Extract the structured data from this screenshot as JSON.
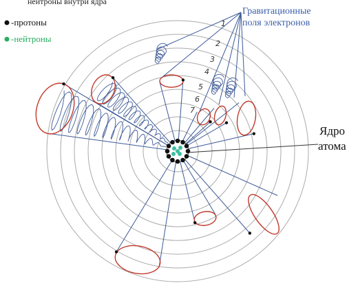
{
  "header": {
    "caption": "нейтроны внутри ядра"
  },
  "legend": {
    "items": [
      {
        "label": "-протоны"
      },
      {
        "label": "-нейтроны"
      }
    ]
  },
  "labels": {
    "fields": [
      "Гравитационные",
      "поля электронов"
    ],
    "nucleus": [
      "Ядро",
      "атома"
    ]
  },
  "numbers": [
    "1",
    "2",
    "3",
    "4",
    "5",
    "6",
    "7"
  ]
}
